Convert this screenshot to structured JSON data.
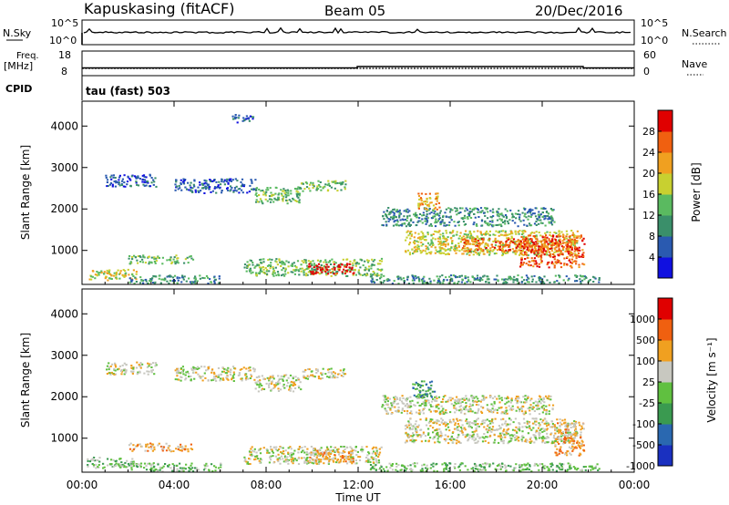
{
  "header": {
    "station": "Kapuskasing (fitACF)",
    "beam": "Beam 05",
    "date": "20/Dec/2016"
  },
  "top_panels": {
    "nsky_label": "N.Sky",
    "nsky_ticks": [
      "10^5",
      "10^0"
    ],
    "nsearch_label": "N.Search",
    "nsearch_ticks": [
      "10^5",
      "10^0"
    ],
    "freq_label": "Freq.",
    "freq_unit": "[MHz]",
    "freq_ticks": [
      "18",
      "8"
    ],
    "nave_label": "Nave",
    "nave_ticks": [
      "60",
      "0"
    ],
    "cpid_label": "CPID",
    "cpid_value": "tau (fast) 503"
  },
  "chart_data": [
    {
      "type": "heatmap",
      "name": "power",
      "ylabel": "Slant Range [km]",
      "xlabel": "Time UT",
      "x_ticks": [
        "00:00",
        "04:00",
        "08:00",
        "12:00",
        "16:00",
        "20:00",
        "00:00"
      ],
      "y_ticks": [
        "1000",
        "2000",
        "3000",
        "4000"
      ],
      "x_range_hours": [
        0,
        24
      ],
      "y_range_km": [
        180,
        4600
      ],
      "colorbar": {
        "label": "Power [dB]",
        "ticks": [
          "4",
          "8",
          "12",
          "16",
          "20",
          "24",
          "28"
        ],
        "colors": [
          "#1010e0",
          "#2a5ab0",
          "#3a8f6a",
          "#5aba60",
          "#c8d030",
          "#f0a020",
          "#f06010",
          "#e00000"
        ]
      },
      "regions": [
        {
          "t": [
            0.2,
            2.4
          ],
          "r": [
            300,
            560
          ],
          "level": 4
        },
        {
          "t": [
            2.0,
            4.8
          ],
          "r": [
            700,
            900
          ],
          "level": 3
        },
        {
          "t": [
            2.0,
            6.0
          ],
          "r": [
            220,
            420
          ],
          "level": 2
        },
        {
          "t": [
            1.0,
            3.2
          ],
          "r": [
            2550,
            2850
          ],
          "level": 1
        },
        {
          "t": [
            4.0,
            7.5
          ],
          "r": [
            2400,
            2750
          ],
          "level": 1
        },
        {
          "t": [
            7.5,
            9.5
          ],
          "r": [
            2150,
            2550
          ],
          "level": 3
        },
        {
          "t": [
            9.5,
            11.5
          ],
          "r": [
            2450,
            2700
          ],
          "level": 3
        },
        {
          "t": [
            7.0,
            13.0
          ],
          "r": [
            400,
            820
          ],
          "level": 3
        },
        {
          "t": [
            9.8,
            11.8
          ],
          "r": [
            450,
            700
          ],
          "level": 7
        },
        {
          "t": [
            6.5,
            7.5
          ],
          "r": [
            4100,
            4300
          ],
          "level": 1
        },
        {
          "t": [
            13.0,
            20.5
          ],
          "r": [
            1600,
            2050
          ],
          "level": 2
        },
        {
          "t": [
            14.0,
            21.5
          ],
          "r": [
            900,
            1500
          ],
          "level": 4
        },
        {
          "t": [
            16.5,
            21.5
          ],
          "r": [
            1000,
            1300
          ],
          "level": 6
        },
        {
          "t": [
            19.0,
            21.8
          ],
          "r": [
            600,
            1400
          ],
          "level": 6
        },
        {
          "t": [
            14.5,
            15.5
          ],
          "r": [
            2000,
            2400
          ],
          "level": 5
        },
        {
          "t": [
            12.5,
            22.5
          ],
          "r": [
            220,
            420
          ],
          "level": 2
        }
      ]
    },
    {
      "type": "heatmap",
      "name": "velocity",
      "ylabel": "Slant Range [km]",
      "xlabel": "Time UT",
      "x_ticks": [
        "00:00",
        "04:00",
        "08:00",
        "12:00",
        "16:00",
        "20:00",
        "00:00"
      ],
      "y_ticks": [
        "1000",
        "2000",
        "3000",
        "4000"
      ],
      "x_range_hours": [
        0,
        24
      ],
      "y_range_km": [
        180,
        4600
      ],
      "colorbar": {
        "label": "Velocity [m s⁻¹]",
        "ticks": [
          "1000",
          "500",
          "100",
          "25",
          "-25",
          "-100",
          "-500",
          "-1000"
        ],
        "colors": [
          "#1a30c0",
          "#2a68b0",
          "#3a9a50",
          "#60c040",
          "#c8c8c0",
          "#f0a020",
          "#f06010",
          "#e00000"
        ]
      },
      "regions": [
        {
          "t": [
            0.2,
            2.4
          ],
          "r": [
            300,
            560
          ],
          "level": 3
        },
        {
          "t": [
            2.0,
            4.8
          ],
          "r": [
            700,
            900
          ],
          "level": 5
        },
        {
          "t": [
            2.0,
            6.0
          ],
          "r": [
            220,
            420
          ],
          "level": 3
        },
        {
          "t": [
            1.0,
            3.2
          ],
          "r": [
            2550,
            2850
          ],
          "level": 4
        },
        {
          "t": [
            4.0,
            7.5
          ],
          "r": [
            2400,
            2750
          ],
          "level": 4
        },
        {
          "t": [
            7.5,
            9.5
          ],
          "r": [
            2150,
            2550
          ],
          "level": 4
        },
        {
          "t": [
            9.5,
            11.5
          ],
          "r": [
            2450,
            2700
          ],
          "level": 4
        },
        {
          "t": [
            7.0,
            13.0
          ],
          "r": [
            400,
            820
          ],
          "level": 4
        },
        {
          "t": [
            9.8,
            11.8
          ],
          "r": [
            450,
            750
          ],
          "level": 5
        },
        {
          "t": [
            13.0,
            20.5
          ],
          "r": [
            1600,
            2050
          ],
          "level": 4
        },
        {
          "t": [
            14.0,
            21.5
          ],
          "r": [
            900,
            1500
          ],
          "level": 4
        },
        {
          "t": [
            14.3,
            15.3
          ],
          "r": [
            2000,
            2400
          ],
          "level": 2
        },
        {
          "t": [
            20.5,
            21.8
          ],
          "r": [
            600,
            1400
          ],
          "level": 5
        },
        {
          "t": [
            12.5,
            22.5
          ],
          "r": [
            220,
            420
          ],
          "level": 3
        }
      ]
    }
  ]
}
